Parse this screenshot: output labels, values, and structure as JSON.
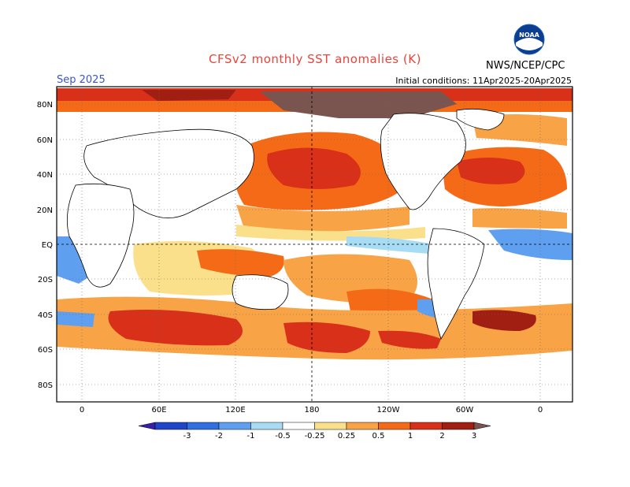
{
  "header": {
    "title": "CFSv2 monthly SST anomalies (K)",
    "month": "Sep 2025",
    "initial_conditions": "Initial conditions: 11Apr2025-20Apr2025",
    "agency": "NWS/NCEP/CPC",
    "logo_text": "NOAA"
  },
  "map": {
    "lat_labels": [
      "80N",
      "60N",
      "40N",
      "20N",
      "EQ",
      "20S",
      "40S",
      "60S",
      "80S"
    ],
    "lon_labels": [
      "0",
      "60E",
      "120E",
      "180",
      "120W",
      "60W",
      "0"
    ]
  },
  "colorbar": {
    "labels": [
      "-3",
      "-2",
      "-1",
      "-0.5",
      "-0.25",
      "0.25",
      "0.5",
      "1",
      "2",
      "3"
    ],
    "colors": [
      "#3a1fa8",
      "#1f46c8",
      "#2f6fe0",
      "#5f9ff0",
      "#a8dcf5",
      "#ffffff",
      "#fbe08c",
      "#f9a347",
      "#f46a16",
      "#d9301a",
      "#a11f12",
      "#7a5550"
    ]
  },
  "palette": {
    "land": "#ffffff",
    "neutral": "#ffffff",
    "weak_warm": "#fbe08c",
    "warm": "#f9a347",
    "warmer": "#f46a16",
    "hot": "#d9301a",
    "very_hot": "#a11f12",
    "extreme": "#7a5550",
    "weak_cool": "#a8dcf5",
    "cool": "#5f9ff0",
    "cooler": "#2f6fe0"
  }
}
